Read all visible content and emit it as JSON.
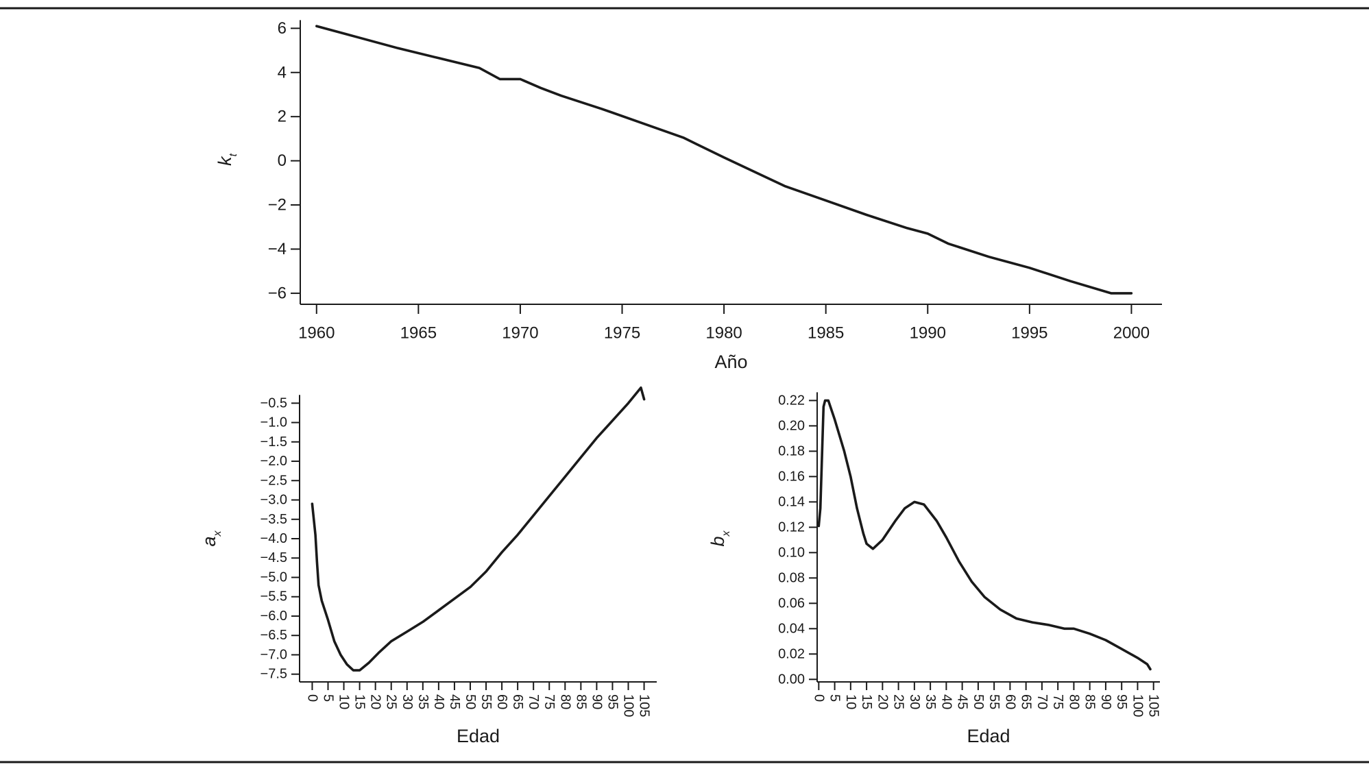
{
  "chart_data": [
    {
      "type": "line",
      "xlabel": "Año",
      "ylabel": "k",
      "ylabel_sub": "t",
      "xlim": [
        1959.2,
        2001.5
      ],
      "ylim": [
        -6.5,
        6.6
      ],
      "xticks": [
        1960,
        1965,
        1970,
        1975,
        1980,
        1985,
        1990,
        1995,
        2000
      ],
      "xtick_labels": [
        "1960",
        "1965",
        "1970",
        "1975",
        "1980",
        "1985",
        "1990",
        "1995",
        "2000"
      ],
      "yticks": [
        6,
        4,
        2,
        0,
        -2,
        -4,
        -6
      ],
      "ytick_labels": [
        "6",
        "4",
        "2",
        "0",
        "−2",
        "−4",
        "−6"
      ],
      "x": [
        1960,
        1962,
        1964,
        1966,
        1968,
        1969,
        1970,
        1971,
        1972,
        1974,
        1976,
        1978,
        1980,
        1983,
        1985,
        1987,
        1989,
        1990,
        1991,
        1993,
        1995,
        1997,
        1999,
        2000
      ],
      "y": [
        6.1,
        5.6,
        5.1,
        4.65,
        4.2,
        3.7,
        3.7,
        3.3,
        2.95,
        2.35,
        1.7,
        1.05,
        0.15,
        -1.15,
        -1.8,
        -2.45,
        -3.05,
        -3.3,
        -3.75,
        -4.35,
        -4.85,
        -5.45,
        -6.0,
        -6.0
      ],
      "grid": false
    },
    {
      "type": "line",
      "xlabel": "Edad",
      "ylabel": "a",
      "ylabel_sub": "x",
      "xlim": [
        -4,
        109
      ],
      "ylim": [
        -7.7,
        -0.3
      ],
      "xticks": [
        0,
        5,
        10,
        15,
        20,
        25,
        30,
        35,
        40,
        45,
        50,
        55,
        60,
        65,
        70,
        75,
        80,
        85,
        90,
        95,
        100,
        105
      ],
      "xtick_labels": [
        "0",
        "5",
        "10",
        "15",
        "20",
        "25",
        "30",
        "35",
        "40",
        "45",
        "50",
        "55",
        "60",
        "65",
        "70",
        "75",
        "80",
        "85",
        "90",
        "95",
        "100",
        "105"
      ],
      "yticks": [
        -0.5,
        -1.0,
        -1.5,
        -2.0,
        -2.5,
        -3.0,
        -3.5,
        -4.0,
        -4.5,
        -5.0,
        -5.5,
        -6.0,
        -6.5,
        -7.0,
        -7.5
      ],
      "ytick_labels": [
        "−0.5",
        "−1.0",
        "−1.5",
        "−2.0",
        "−2.5",
        "−3.0",
        "−3.5",
        "−4.0",
        "−4.5",
        "−5.0",
        "−5.5",
        "−6.0",
        "−6.5",
        "−7.0",
        "−7.5"
      ],
      "x": [
        0,
        1,
        1.5,
        2,
        3,
        5,
        7,
        9,
        11,
        13,
        15,
        18,
        21,
        25,
        30,
        35,
        40,
        45,
        50,
        55,
        60,
        65,
        70,
        75,
        80,
        85,
        90,
        95,
        100,
        104,
        105
      ],
      "y": [
        -3.1,
        -3.9,
        -4.6,
        -5.2,
        -5.6,
        -6.1,
        -6.65,
        -7.0,
        -7.25,
        -7.4,
        -7.4,
        -7.2,
        -6.95,
        -6.65,
        -6.4,
        -6.15,
        -5.85,
        -5.55,
        -5.25,
        -4.85,
        -4.35,
        -3.9,
        -3.4,
        -2.9,
        -2.4,
        -1.9,
        -1.4,
        -0.95,
        -0.5,
        -0.1,
        -0.4
      ],
      "grid": false
    },
    {
      "type": "line",
      "xlabel": "Edad",
      "ylabel": "b",
      "ylabel_sub": "x",
      "xlim": [
        -0.5,
        107
      ],
      "ylim": [
        -0.002,
        0.224
      ],
      "xticks": [
        0,
        5,
        10,
        15,
        20,
        25,
        30,
        35,
        40,
        45,
        50,
        55,
        60,
        65,
        70,
        75,
        80,
        85,
        90,
        95,
        100,
        105
      ],
      "xtick_labels": [
        "0",
        "5",
        "10",
        "15",
        "20",
        "25",
        "30",
        "35",
        "40",
        "45",
        "50",
        "55",
        "60",
        "65",
        "70",
        "75",
        "80",
        "85",
        "90",
        "95",
        "100",
        "105"
      ],
      "yticks": [
        0.22,
        0.2,
        0.18,
        0.16,
        0.14,
        0.12,
        0.1,
        0.08,
        0.06,
        0.04,
        0.02,
        0.0
      ],
      "ytick_labels": [
        "0.22",
        "0.20",
        "0.18",
        "0.16",
        "0.14",
        "0.12",
        "0.10",
        "0.08",
        "0.06",
        "0.04",
        "0.02",
        "0.00"
      ],
      "x": [
        0,
        0.5,
        1,
        1.5,
        2,
        3,
        5,
        8,
        10,
        12,
        14,
        15,
        17,
        20,
        24,
        27,
        30,
        33,
        37,
        40,
        44,
        48,
        52,
        57,
        62,
        67,
        72,
        77,
        80,
        85,
        90,
        95,
        100,
        103,
        104
      ],
      "y": [
        0.121,
        0.135,
        0.175,
        0.215,
        0.22,
        0.22,
        0.205,
        0.18,
        0.16,
        0.135,
        0.115,
        0.107,
        0.103,
        0.11,
        0.125,
        0.135,
        0.14,
        0.138,
        0.125,
        0.112,
        0.093,
        0.077,
        0.065,
        0.055,
        0.048,
        0.045,
        0.043,
        0.04,
        0.04,
        0.036,
        0.031,
        0.024,
        0.017,
        0.012,
        0.008
      ],
      "grid": false
    }
  ]
}
